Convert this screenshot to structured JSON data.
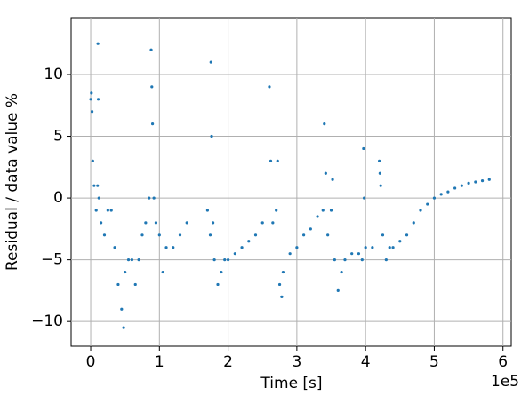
{
  "chart_data": {
    "type": "scatter",
    "x_label": "Time [s]",
    "y_label": "Residual / data value  %",
    "x_offset_label": "1e5",
    "color": "#1f77b4",
    "grid": true,
    "xlim": [
      -28500,
      612000
    ],
    "ylim": [
      -12,
      14.6
    ],
    "xticks": [
      {
        "value": 0,
        "label": "0"
      },
      {
        "value": 100000,
        "label": "1"
      },
      {
        "value": 200000,
        "label": "2"
      },
      {
        "value": 300000,
        "label": "3"
      },
      {
        "value": 400000,
        "label": "4"
      },
      {
        "value": 500000,
        "label": "5"
      },
      {
        "value": 600000,
        "label": "6"
      }
    ],
    "yticks": [
      {
        "value": -10,
        "label": "−10"
      },
      {
        "value": -5,
        "label": "−5"
      },
      0,
      5,
      10
    ],
    "x": [
      0,
      1000,
      2000,
      3000,
      5000,
      8000,
      10000,
      10500,
      11000,
      12000,
      15000,
      20000,
      25000,
      30000,
      35000,
      40000,
      45000,
      48000,
      50000,
      55000,
      60000,
      65000,
      70000,
      75000,
      80000,
      85000,
      88000,
      89000,
      90000,
      92000,
      95000,
      100000,
      105000,
      110000,
      120000,
      130000,
      140000,
      170000,
      174000,
      175000,
      176000,
      178000,
      180000,
      185000,
      190000,
      195000,
      200000,
      210000,
      220000,
      230000,
      240000,
      250000,
      260000,
      262000,
      265000,
      270000,
      272000,
      275000,
      278000,
      280000,
      290000,
      300000,
      310000,
      320000,
      330000,
      338000,
      340000,
      342000,
      345000,
      350000,
      352000,
      355000,
      360000,
      365000,
      370000,
      380000,
      390000,
      395000,
      397000,
      398000,
      400000,
      410000,
      420000,
      421000,
      422000,
      425000,
      430000,
      435000,
      440000,
      450000,
      460000,
      470000,
      480000,
      490000,
      500000,
      510000,
      520000,
      530000,
      540000,
      550000,
      560000,
      570000,
      580000
    ],
    "values": [
      8,
      8.5,
      7,
      3,
      1,
      -1,
      1,
      12.5,
      8,
      0,
      -2,
      -3,
      -1,
      -1,
      -4,
      -7,
      -9,
      -10.5,
      -6,
      -5,
      -5,
      -7,
      -5,
      -3,
      -2,
      0,
      12,
      9,
      6,
      0,
      -2,
      -3,
      -6,
      -4,
      -4,
      -3,
      -2,
      -1,
      -3,
      11,
      5,
      -2,
      -5,
      -7,
      -6,
      -5,
      -5,
      -4.5,
      -4,
      -3.5,
      -3,
      -2,
      9,
      3,
      -2,
      -1,
      3,
      -7,
      -8,
      -6,
      -4.5,
      -4,
      -3,
      -2.5,
      -1.5,
      -1,
      6,
      2,
      -3,
      -1,
      1.5,
      -5,
      -7.5,
      -6,
      -5,
      -4.5,
      -4.5,
      -5,
      4,
      0,
      -4,
      -4,
      3,
      2,
      1,
      -3,
      -5,
      -4,
      -4,
      -3.5,
      -3,
      -2,
      -1,
      -0.5,
      0,
      0.3,
      0.5,
      0.8,
      1,
      1.2,
      1.3,
      1.4,
      1.5
    ]
  }
}
